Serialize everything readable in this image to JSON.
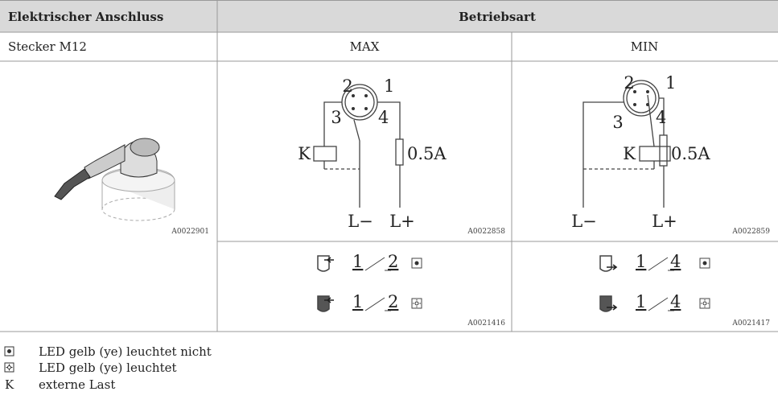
{
  "header": {
    "col1": "Elektrischer Anschluss",
    "col2": "Betriebsart"
  },
  "row1": {
    "connector": "Stecker M12",
    "max": "MAX",
    "min": "MIN"
  },
  "connector_image_id": "A0022901",
  "diagrams": [
    {
      "pins": [
        "2",
        "1",
        "3",
        "4"
      ],
      "load": "K",
      "fuse": "0.5A",
      "neg": "L−",
      "pos": "L+",
      "id": "A0022858"
    },
    {
      "pins": [
        "2",
        "1",
        "3",
        "4"
      ],
      "load": "K",
      "fuse": "0.5A",
      "neg": "L−",
      "pos": "L+",
      "id": "A0022859"
    }
  ],
  "switching": [
    {
      "rows": [
        [
          "1",
          "2"
        ],
        [
          "1",
          "2"
        ]
      ],
      "id": "A0021416"
    },
    {
      "rows": [
        [
          "1",
          "4"
        ],
        [
          "1",
          "4"
        ]
      ],
      "id": "A0021417"
    }
  ],
  "legend": [
    {
      "text": "LED gelb (ye) leuchtet nicht"
    },
    {
      "text": "LED gelb (ye) leuchtet"
    },
    {
      "symbol": "K",
      "text": "externe Last"
    }
  ]
}
